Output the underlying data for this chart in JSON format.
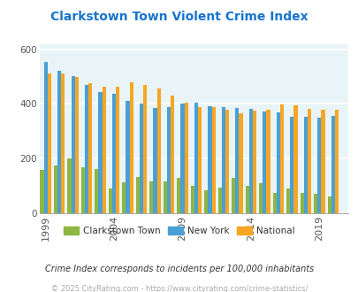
{
  "title": "Clarkstown Town Violent Crime Index",
  "title_color": "#1874CD",
  "years": [
    1999,
    2000,
    2001,
    2002,
    2003,
    2004,
    2005,
    2006,
    2007,
    2008,
    2009,
    2010,
    2011,
    2012,
    2013,
    2014,
    2015,
    2016,
    2017,
    2018,
    2019,
    2020
  ],
  "clarkstown": [
    160,
    175,
    200,
    168,
    162,
    90,
    112,
    132,
    115,
    115,
    128,
    100,
    85,
    95,
    130,
    100,
    110,
    75,
    90,
    75,
    70,
    60
  ],
  "new_york": [
    555,
    520,
    502,
    468,
    443,
    438,
    410,
    400,
    385,
    390,
    400,
    405,
    393,
    388,
    385,
    383,
    372,
    370,
    353,
    353,
    350,
    355
  ],
  "national": [
    510,
    510,
    500,
    475,
    462,
    463,
    478,
    468,
    455,
    430,
    405,
    390,
    387,
    380,
    367,
    375,
    380,
    398,
    395,
    383,
    380,
    378
  ],
  "bar_width": 0.27,
  "colors": {
    "clarkstown": "#8DB642",
    "new_york": "#4A9FD4",
    "national": "#F5A623"
  },
  "ylim": [
    0,
    620
  ],
  "yticks": [
    0,
    200,
    400,
    600
  ],
  "xticks": [
    1999,
    2004,
    2009,
    2014,
    2019
  ],
  "bg_color": "#E8F4F8",
  "grid_color": "#FFFFFF",
  "footer_text1": "Crime Index corresponds to incidents per 100,000 inhabitants",
  "footer_text2": "© 2025 CityRating.com - https://www.cityrating.com/crime-statistics/",
  "legend_labels": [
    "Clarkstown Town",
    "New York",
    "National"
  ]
}
